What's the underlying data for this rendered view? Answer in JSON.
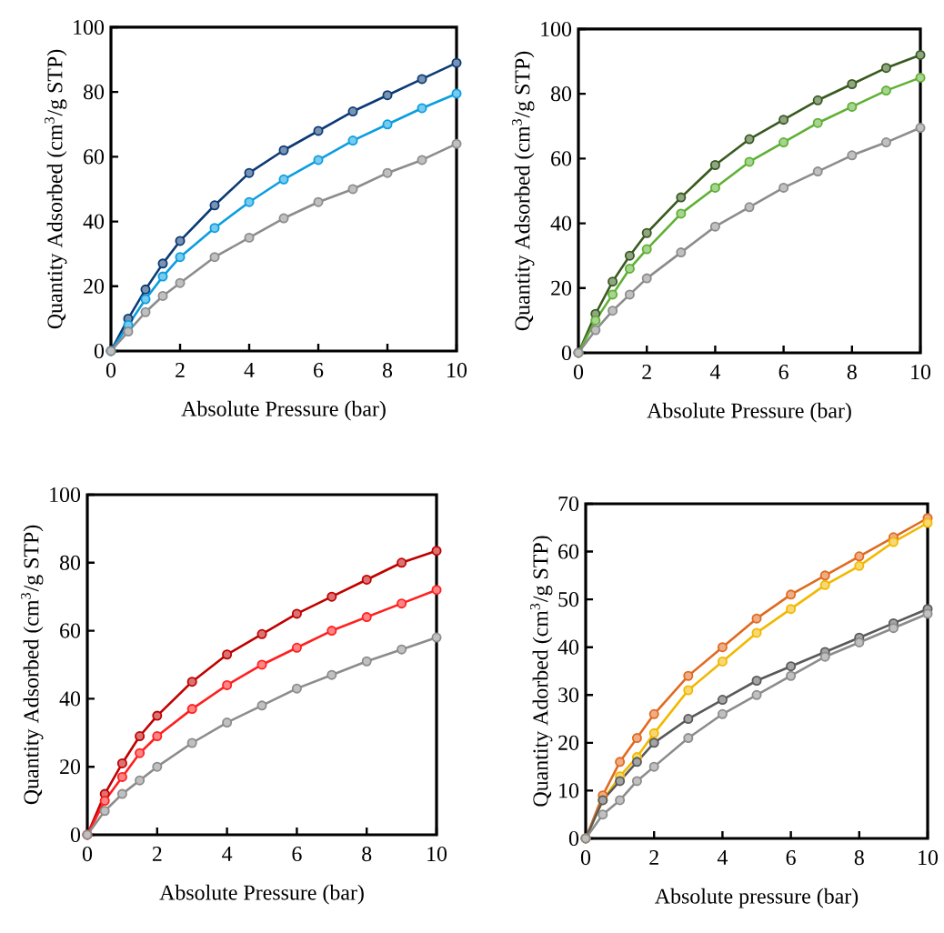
{
  "chart_data": [
    {
      "type": "line",
      "marker": "circle",
      "xlabel": "Absolute Pressure (bar)",
      "ylabel": "Quantity Adsorbed (cm$^{3}$/g STP)",
      "xlim": [
        0,
        10
      ],
      "ylim": [
        0,
        100
      ],
      "xticks": [
        0,
        2,
        4,
        6,
        8,
        10
      ],
      "yticks": [
        0,
        20,
        40,
        60,
        80,
        100
      ],
      "x": [
        0,
        0.5,
        1,
        1.5,
        2,
        3,
        4,
        5,
        6,
        7,
        8,
        9,
        10
      ],
      "series": [
        {
          "color": "#0b3a75",
          "values": [
            0,
            10,
            19,
            27,
            34,
            45,
            55,
            62,
            68,
            74,
            79,
            84,
            89
          ]
        },
        {
          "color": "#0a9ee0",
          "values": [
            0,
            8,
            16,
            23,
            29,
            38,
            46,
            53,
            59,
            65,
            70,
            75,
            79.5
          ]
        },
        {
          "color": "#8c8c8c",
          "values": [
            0,
            6,
            12,
            17,
            21,
            29,
            35,
            41,
            46,
            50,
            55,
            59,
            64
          ]
        }
      ]
    },
    {
      "type": "line",
      "marker": "circle",
      "xlabel": "Absolute Pressure (bar)",
      "ylabel": "Quantity Adsorbed (cm$^{3}$/g STP)",
      "xlim": [
        0,
        10
      ],
      "ylim": [
        0,
        100
      ],
      "xticks": [
        0,
        2,
        4,
        6,
        8,
        10
      ],
      "yticks": [
        0,
        20,
        40,
        60,
        80,
        100
      ],
      "x": [
        0,
        0.5,
        1,
        1.5,
        2,
        3,
        4,
        5,
        6,
        7,
        8,
        9,
        10
      ],
      "series": [
        {
          "color": "#375a1e",
          "values": [
            0,
            12,
            22,
            30,
            37,
            48,
            58,
            66,
            72,
            78,
            83,
            88,
            92
          ]
        },
        {
          "color": "#5fb035",
          "values": [
            0,
            10,
            18,
            26,
            32,
            43,
            51,
            59,
            65,
            71,
            76,
            81,
            85
          ]
        },
        {
          "color": "#8c8c8c",
          "values": [
            0,
            7,
            13,
            18,
            23,
            31,
            39,
            45,
            51,
            56,
            61,
            65,
            69.5
          ]
        }
      ]
    },
    {
      "type": "line",
      "marker": "circle",
      "xlabel": "Absolute Pressure (bar)",
      "ylabel": "Quantity Adsorbed (cm$^{3}$/g STP)",
      "xlim": [
        0,
        10
      ],
      "ylim": [
        0,
        100
      ],
      "xticks": [
        0,
        2,
        4,
        6,
        8,
        10
      ],
      "yticks": [
        0,
        20,
        40,
        60,
        80,
        100
      ],
      "x": [
        0,
        0.5,
        1,
        1.5,
        2,
        3,
        4,
        5,
        6,
        7,
        8,
        9,
        10
      ],
      "series": [
        {
          "color": "#c00000",
          "values": [
            0,
            12,
            21,
            29,
            35,
            45,
            53,
            59,
            65,
            70,
            75,
            80,
            83.5
          ]
        },
        {
          "color": "#ff2020",
          "values": [
            0,
            10,
            17,
            24,
            29,
            37,
            44,
            50,
            55,
            60,
            64,
            68,
            72
          ]
        },
        {
          "color": "#8c8c8c",
          "values": [
            0,
            7,
            12,
            16,
            20,
            27,
            33,
            38,
            43,
            47,
            51,
            54.5,
            58
          ]
        }
      ]
    },
    {
      "type": "line",
      "marker": "circle",
      "xlabel": "Absolute pressure (bar)",
      "ylabel": "Quantity Adorbed (cm$^{3}$/g STP)",
      "xlim": [
        0,
        10
      ],
      "ylim": [
        0,
        70
      ],
      "xticks": [
        0,
        2,
        4,
        6,
        8,
        10
      ],
      "yticks": [
        0,
        10,
        20,
        30,
        40,
        50,
        60,
        70
      ],
      "x": [
        0,
        0.5,
        1,
        1.5,
        2,
        3,
        4,
        5,
        6,
        7,
        8,
        9,
        10
      ],
      "series": [
        {
          "color": "#e06a20",
          "values": [
            0,
            9,
            16,
            21,
            26,
            34,
            40,
            46,
            51,
            55,
            59,
            63,
            67
          ]
        },
        {
          "color": "#f2b800",
          "values": [
            0,
            8,
            13,
            17,
            22,
            31,
            37,
            43,
            48,
            53,
            57,
            62,
            66
          ]
        },
        {
          "color": "#595959",
          "values": [
            0,
            8,
            12,
            16,
            20,
            25,
            29,
            33,
            36,
            39,
            42,
            45,
            48
          ]
        },
        {
          "color": "#8c8c8c",
          "values": [
            0,
            5,
            8,
            12,
            15,
            21,
            26,
            30,
            34,
            38,
            41,
            44,
            47
          ]
        }
      ]
    }
  ]
}
